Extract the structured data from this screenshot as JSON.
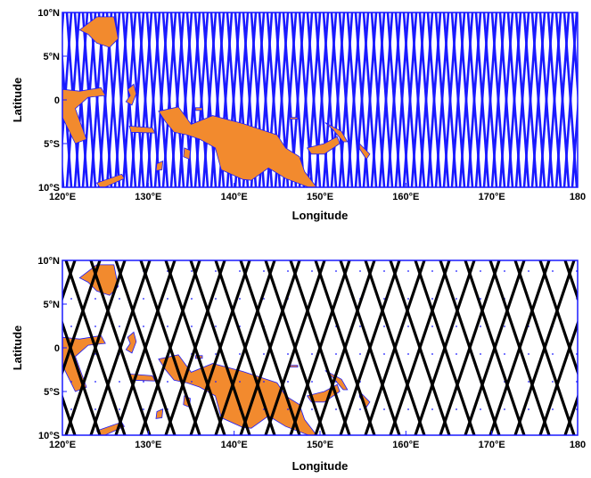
{
  "panels": [
    {
      "ylabel": "Latitude",
      "xlabel": "Longitude",
      "ytick_labels": [
        "10°N",
        "5°N",
        "0",
        "5°S",
        "10°S"
      ],
      "xtick_labels": [
        "120°E",
        "130°E",
        "140°E",
        "150°E",
        "160°E",
        "170°E",
        "180"
      ],
      "track_color": "#1a1aff",
      "track_style": "dense crossing ground tracks"
    },
    {
      "ylabel": "Latitude",
      "xlabel": "Longitude",
      "ytick_labels": [
        "10°N",
        "5°N",
        "0",
        "5°S",
        "10°S"
      ],
      "xtick_labels": [
        "120°E",
        "130°E",
        "140°E",
        "150°E",
        "160°E",
        "170°E",
        "180"
      ],
      "track_color": "#000000",
      "track_style": "sparse diamond ground tracks"
    }
  ],
  "map": {
    "lon_range": [
      120,
      180
    ],
    "lat_range": [
      -10,
      10
    ],
    "land_color": "#f28a2e",
    "coast_color": "#1a1aff",
    "frame_color": "#1a1aff"
  }
}
